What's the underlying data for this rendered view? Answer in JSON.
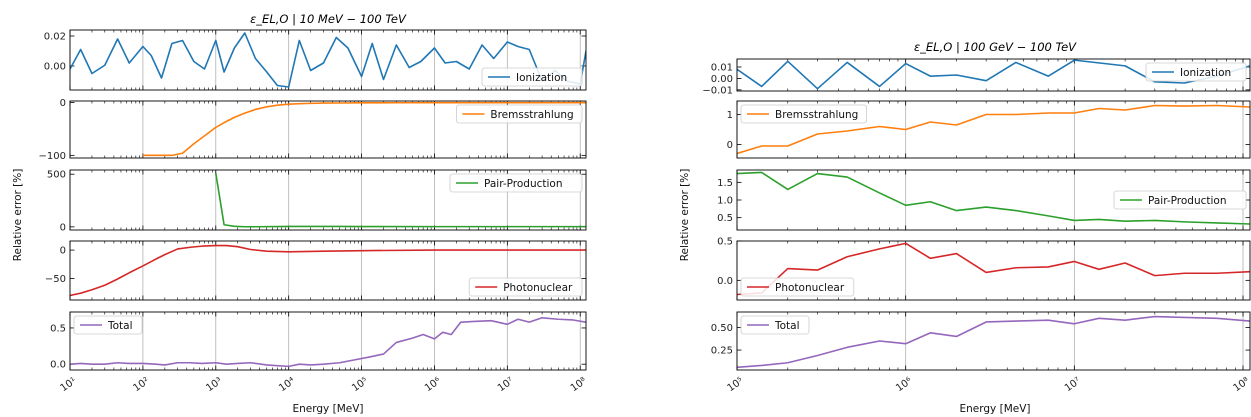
{
  "figure": {
    "ylabel": "Relative error [%]",
    "xlabel": "Energy [MeV]"
  },
  "chart_data": [
    {
      "type": "line",
      "title": "ε_EL,O | 10 MeV − 100 TeV",
      "xlabel": "Energy [MeV]",
      "ylabel": "Relative error [%]",
      "x_scale": "log",
      "xlim": [
        10,
        120000000
      ],
      "x_ticks": [
        10,
        100,
        1000,
        10000,
        100000,
        1000000,
        10000000,
        100000000
      ],
      "x_tick_labels": [
        "10¹",
        "10²",
        "10³",
        "10⁴",
        "10⁵",
        "10⁶",
        "10⁷",
        "10⁸"
      ],
      "grid": true,
      "panels": [
        {
          "name": "Ionization",
          "color": "#1f77b4",
          "legend": "bottom-right",
          "ylim": [
            -0.016,
            0.024
          ],
          "yticks": [
            0,
            0.02
          ],
          "ytick_labels": [
            "0.00",
            "0.02"
          ],
          "x": [
            10,
            14,
            20,
            30,
            45,
            65,
            100,
            130,
            180,
            250,
            350,
            500,
            700,
            1000,
            1300,
            1800,
            2500,
            3500,
            5000,
            7000,
            10000,
            14000,
            20000,
            30000,
            45000,
            65000,
            100000,
            140000,
            200000,
            300000,
            450000,
            650000,
            1000000,
            1400000,
            2000000,
            3000000,
            4500000,
            6500000,
            10000000,
            14000000,
            20000000,
            30000000,
            45000000,
            65000000,
            100000000,
            120000000
          ],
          "y": [
            -0.002,
            0.011,
            -0.005,
            0.0005,
            0.018,
            0.002,
            0.013,
            0.007,
            -0.008,
            0.015,
            0.017,
            0.003,
            -0.002,
            0.017,
            -0.004,
            0.012,
            0.022,
            0.005,
            -0.004,
            -0.013,
            -0.014,
            0.017,
            -0.003,
            0.002,
            0.019,
            0.012,
            -0.007,
            0.015,
            -0.009,
            0.014,
            -0.001,
            0.003,
            0.012,
            0.002,
            0.003,
            -0.002,
            0.014,
            0.005,
            0.016,
            0.013,
            0.011,
            -0.01,
            -0.003,
            -0.01,
            -0.012,
            0.01
          ]
        },
        {
          "name": "Bremsstrahlung",
          "color": "#ff7f0e",
          "legend": "top-right",
          "ylim": [
            -105,
            3
          ],
          "yticks": [
            -100,
            0
          ],
          "ytick_labels": [
            "−100",
            "0"
          ],
          "x": [
            100,
            180,
            250,
            350,
            500,
            700,
            1000,
            1300,
            1800,
            2500,
            3500,
            5000,
            7000,
            10000,
            14000,
            20000,
            30000,
            50000,
            100000,
            300000,
            1000000,
            10000000,
            120000000
          ],
          "y": [
            -100,
            -100,
            -100,
            -96,
            -78,
            -63,
            -47,
            -38,
            -28,
            -20,
            -13,
            -8,
            -5,
            -3,
            -2,
            -1.5,
            -1,
            -0.8,
            -0.5,
            -0.3,
            -0.2,
            -0.1,
            -0.1
          ]
        },
        {
          "name": "Pair-Production",
          "color": "#2ca02c",
          "legend": "top-right",
          "ylim": [
            -30,
            540
          ],
          "yticks": [
            0,
            500
          ],
          "ytick_labels": [
            "0",
            "500"
          ],
          "x": [
            1000,
            1300,
            1800,
            2500,
            3500,
            5000,
            7000,
            10000,
            20000,
            50000,
            100000,
            1000000,
            10000000,
            120000000
          ],
          "y": [
            510,
            20,
            5,
            1,
            1,
            2,
            3,
            4,
            4,
            4,
            3,
            2,
            2,
            2
          ]
        },
        {
          "name": "Photonuclear",
          "color": "#d62728",
          "legend": "bottom-right",
          "ylim": [
            -88,
            16
          ],
          "yticks": [
            -50,
            0
          ],
          "ytick_labels": [
            "−50",
            "0"
          ],
          "x": [
            10,
            14,
            20,
            30,
            45,
            65,
            100,
            150,
            200,
            300,
            450,
            650,
            1000,
            1400,
            2000,
            3000,
            5000,
            10000,
            30000,
            100000,
            1000000,
            10000000,
            120000000
          ],
          "y": [
            -80,
            -76,
            -70,
            -62,
            -51,
            -40,
            -28,
            -16,
            -8,
            2,
            5,
            7,
            8,
            8,
            6,
            1,
            -2,
            -3,
            -2,
            -1,
            0,
            0,
            0
          ]
        },
        {
          "name": "Total",
          "color": "#9467bd",
          "legend": "top-left",
          "ylim": [
            -0.08,
            0.72
          ],
          "yticks": [
            0,
            0.5
          ],
          "ytick_labels": [
            "0.0",
            "0.5"
          ],
          "x": [
            10,
            14,
            20,
            30,
            45,
            65,
            100,
            150,
            200,
            300,
            450,
            650,
            1000,
            1400,
            2000,
            3000,
            5000,
            7000,
            10000,
            14000,
            20000,
            30000,
            50000,
            80000,
            130000,
            200000,
            300000,
            500000,
            700000,
            1000000,
            1300000,
            1700000,
            2300000,
            3500000,
            6000000,
            10000000,
            14000000,
            20000000,
            30000000,
            50000000,
            80000000,
            120000000
          ],
          "y": [
            0.0,
            0.01,
            0.0,
            0.0,
            0.02,
            0.01,
            0.01,
            0.0,
            -0.01,
            0.02,
            0.02,
            0.01,
            0.02,
            0.0,
            0.01,
            0.02,
            -0.01,
            -0.02,
            -0.03,
            0.0,
            -0.01,
            0.0,
            0.02,
            0.06,
            0.1,
            0.14,
            0.3,
            0.36,
            0.41,
            0.35,
            0.44,
            0.41,
            0.58,
            0.59,
            0.6,
            0.55,
            0.62,
            0.58,
            0.64,
            0.62,
            0.61,
            0.58
          ]
        }
      ]
    },
    {
      "type": "line",
      "title": "ε_EL,O | 100 GeV − 100 TeV",
      "xlabel": "Energy [MeV]",
      "ylabel": "Relative error [%]",
      "x_scale": "log",
      "xlim": [
        100000,
        110000000
      ],
      "x_ticks": [
        100000,
        1000000,
        10000000,
        100000000
      ],
      "x_tick_labels": [
        "10⁵",
        "10⁶",
        "10⁷",
        "10⁸"
      ],
      "grid": true,
      "panels": [
        {
          "name": "Ionization",
          "color": "#1f77b4",
          "legend": "top-right",
          "ylim": [
            -0.011,
            0.017
          ],
          "yticks": [
            -0.01,
            0,
            0.01
          ],
          "ytick_labels": [
            "−0.01",
            "0.00",
            "0.01"
          ],
          "x": [
            100000,
            140000,
            200000,
            300000,
            450000,
            700000,
            1000000,
            1400000,
            2000000,
            3000000,
            4500000,
            7000000,
            10000000,
            20000000,
            30000000,
            45000000,
            70000000,
            110000000
          ],
          "y": [
            0.008,
            -0.007,
            0.015,
            -0.009,
            0.014,
            -0.007,
            0.013,
            0.002,
            0.003,
            -0.002,
            0.014,
            0.002,
            0.016,
            0.011,
            -0.003,
            -0.004,
            0.002,
            0.011
          ]
        },
        {
          "name": "Bremsstrahlung",
          "color": "#ff7f0e",
          "legend": "top-left",
          "ylim": [
            -0.45,
            1.45
          ],
          "yticks": [
            0,
            1
          ],
          "ytick_labels": [
            "0",
            "1"
          ],
          "x": [
            100000,
            140000,
            200000,
            300000,
            450000,
            700000,
            1000000,
            1400000,
            2000000,
            3000000,
            4500000,
            7000000,
            10000000,
            14000000,
            20000000,
            30000000,
            45000000,
            70000000,
            110000000
          ],
          "y": [
            -0.3,
            -0.05,
            -0.05,
            0.35,
            0.45,
            0.6,
            0.5,
            0.75,
            0.65,
            1.0,
            1.0,
            1.05,
            1.05,
            1.2,
            1.15,
            1.3,
            1.28,
            1.3,
            1.25
          ]
        },
        {
          "name": "Pair-Production",
          "color": "#2ca02c",
          "legend": "right",
          "ylim": [
            0.15,
            1.85
          ],
          "yticks": [
            0.5,
            1,
            1.5
          ],
          "ytick_labels": [
            "0.5",
            "1.0",
            "1.5"
          ],
          "x": [
            100000,
            140000,
            200000,
            300000,
            450000,
            700000,
            1000000,
            1400000,
            2000000,
            3000000,
            4500000,
            7000000,
            10000000,
            14000000,
            20000000,
            30000000,
            45000000,
            70000000,
            110000000
          ],
          "y": [
            1.75,
            1.78,
            1.3,
            1.75,
            1.65,
            1.2,
            0.85,
            0.95,
            0.7,
            0.8,
            0.7,
            0.55,
            0.42,
            0.45,
            0.4,
            0.42,
            0.38,
            0.35,
            0.32
          ]
        },
        {
          "name": "Photonuclear",
          "color": "#d62728",
          "legend": "bottom-left",
          "ylim": [
            -0.25,
            0.5
          ],
          "yticks": [
            0,
            0.5
          ],
          "ytick_labels": [
            "0.0",
            "0.5"
          ],
          "x": [
            100000,
            140000,
            200000,
            300000,
            450000,
            700000,
            1000000,
            1400000,
            2000000,
            3000000,
            4500000,
            7000000,
            10000000,
            14000000,
            20000000,
            30000000,
            45000000,
            70000000,
            110000000
          ],
          "y": [
            -0.18,
            -0.16,
            0.15,
            0.13,
            0.3,
            0.4,
            0.47,
            0.28,
            0.34,
            0.1,
            0.16,
            0.17,
            0.24,
            0.14,
            0.22,
            0.06,
            0.09,
            0.09,
            0.11
          ]
        },
        {
          "name": "Total",
          "color": "#9467bd",
          "legend": "top-left",
          "ylim": [
            0.03,
            0.67
          ],
          "yticks": [
            0.25,
            0.5
          ],
          "ytick_labels": [
            "0.25",
            "0.50"
          ],
          "x": [
            100000,
            140000,
            200000,
            300000,
            450000,
            700000,
            1000000,
            1400000,
            2000000,
            3000000,
            4500000,
            7000000,
            10000000,
            14000000,
            20000000,
            30000000,
            45000000,
            70000000,
            110000000
          ],
          "y": [
            0.06,
            0.08,
            0.11,
            0.19,
            0.28,
            0.35,
            0.32,
            0.44,
            0.4,
            0.56,
            0.57,
            0.58,
            0.54,
            0.6,
            0.58,
            0.62,
            0.61,
            0.6,
            0.57
          ]
        }
      ]
    }
  ]
}
